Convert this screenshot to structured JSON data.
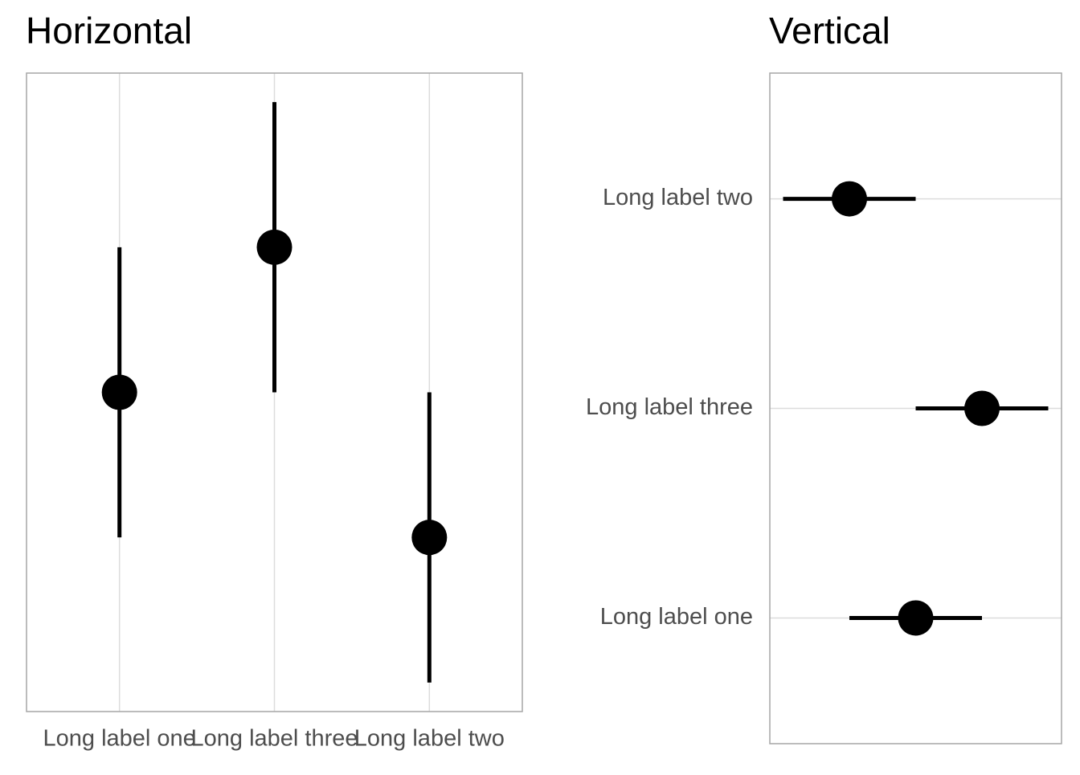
{
  "chart_data": [
    {
      "type": "pointrange",
      "title": "Horizontal",
      "orientation": "vertical",
      "categories": [
        "Long label one",
        "Long label three",
        "Long label two"
      ],
      "series": [
        {
          "color": "#000000",
          "values": [
            0,
            1,
            -1
          ],
          "lower": [
            -1,
            0,
            -2
          ],
          "upper": [
            1,
            2,
            0
          ]
        }
      ],
      "ylim": [
        -2.2,
        2.2
      ],
      "grid": true
    },
    {
      "type": "pointrange",
      "title": "Vertical",
      "orientation": "horizontal",
      "categories": [
        "Long label one",
        "Long label three",
        "Long label two"
      ],
      "series": [
        {
          "color": "#000000",
          "values": [
            0,
            1,
            -1
          ],
          "lower": [
            -1,
            0,
            -2
          ],
          "upper": [
            1,
            2,
            0
          ]
        }
      ],
      "xlim": [
        -2.2,
        2.2
      ],
      "grid": true
    }
  ]
}
